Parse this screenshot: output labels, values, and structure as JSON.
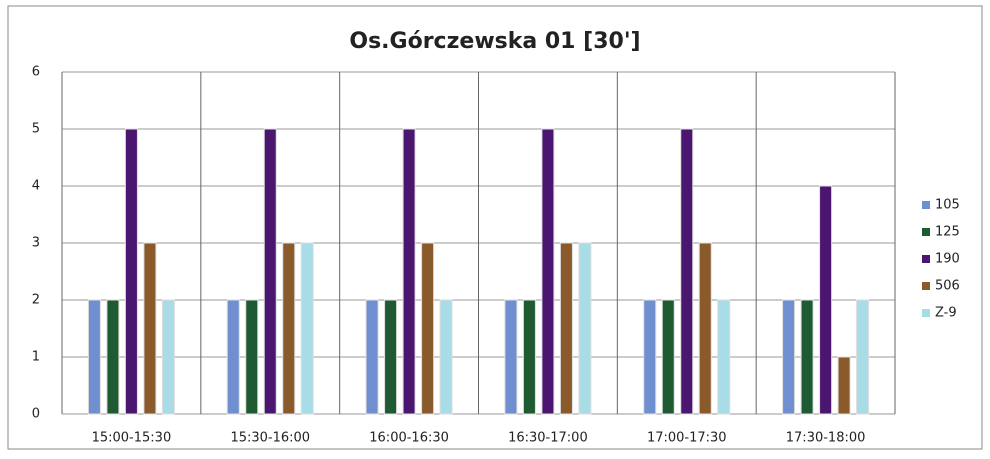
{
  "chart_data": {
    "type": "bar",
    "title": "Os.Górczewska 01 [30']",
    "categories": [
      "15:00-15:30",
      "15:30-16:00",
      "16:00-16:30",
      "16:30-17:00",
      "17:00-17:30",
      "17:30-18:00"
    ],
    "series": [
      {
        "name": "105",
        "color": "#6f8fd0",
        "values": [
          2,
          2,
          2,
          2,
          2,
          2
        ]
      },
      {
        "name": "125",
        "color": "#1e5a32",
        "values": [
          2,
          2,
          2,
          2,
          2,
          2
        ]
      },
      {
        "name": "190",
        "color": "#4b1670",
        "values": [
          5,
          5,
          5,
          5,
          5,
          4
        ]
      },
      {
        "name": "506",
        "color": "#8b5a2b",
        "values": [
          3,
          3,
          3,
          3,
          3,
          1
        ]
      },
      {
        "name": "Z-9",
        "color": "#a8dde8",
        "values": [
          2,
          3,
          2,
          3,
          2,
          2
        ]
      }
    ],
    "ylim": [
      0,
      6
    ],
    "yticks": [
      0,
      1,
      2,
      3,
      4,
      5,
      6
    ],
    "grid": true,
    "legend": "right"
  }
}
